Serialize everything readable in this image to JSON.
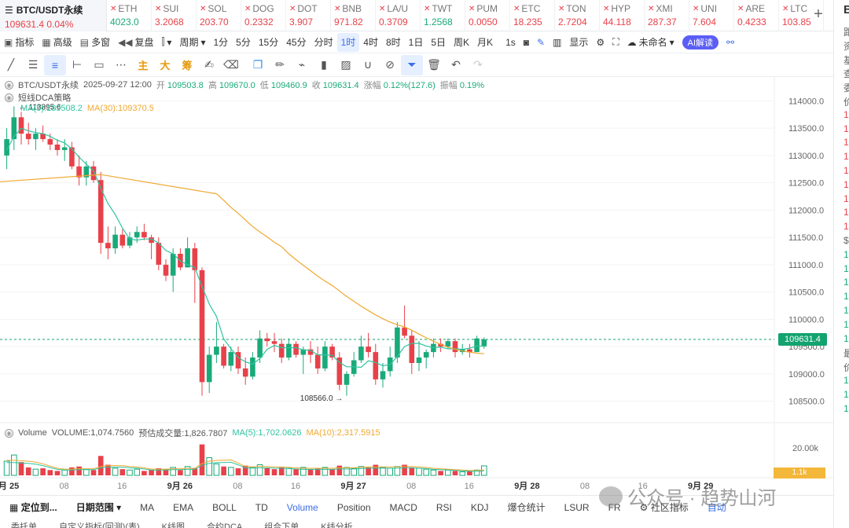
{
  "main_symbol": {
    "name": "BTC/USDT永续",
    "price": "109631.4",
    "change": "0.04%"
  },
  "tickers": [
    {
      "name": "ETH",
      "price": "4023.0",
      "dir": "up"
    },
    {
      "name": "SUI",
      "price": "3.2068",
      "dir": "down"
    },
    {
      "name": "SOL",
      "price": "203.70",
      "dir": "down"
    },
    {
      "name": "DOG",
      "price": "0.2332",
      "dir": "down"
    },
    {
      "name": "DOT",
      "price": "3.907",
      "dir": "down"
    },
    {
      "name": "BNB",
      "price": "971.82",
      "dir": "down"
    },
    {
      "name": "LA/U",
      "price": "0.3709",
      "dir": "down"
    },
    {
      "name": "TWT",
      "price": "1.2568",
      "dir": "up"
    },
    {
      "name": "PUM",
      "price": "0.0050",
      "dir": "down"
    },
    {
      "name": "ETC",
      "price": "18.235",
      "dir": "down"
    },
    {
      "name": "TON",
      "price": "2.7204",
      "dir": "down"
    },
    {
      "name": "HYP",
      "price": "44.118",
      "dir": "down"
    },
    {
      "name": "XMI",
      "price": "287.37",
      "dir": "down"
    },
    {
      "name": "UNI",
      "price": "7.604",
      "dir": "down"
    },
    {
      "name": "ARE",
      "price": "0.4233",
      "dir": "down"
    },
    {
      "name": "LTC",
      "price": "103.85",
      "dir": "down"
    }
  ],
  "toolbar": {
    "indicators": "指标",
    "advanced": "高级",
    "multi": "多窗",
    "replay": "复盘",
    "period": "周期",
    "periods": [
      "1分",
      "5分",
      "15分",
      "45分",
      "分时",
      "1时",
      "4时",
      "8时",
      "1日",
      "5日",
      "周K",
      "月K"
    ],
    "active_period": "1时",
    "seconds": "1s",
    "display": "显示",
    "unnamed": "未命名",
    "ai": "AI解读"
  },
  "draw_tools": [
    "主",
    "大",
    "筹"
  ],
  "chart_info": {
    "symbol": "BTC/USDT永续",
    "datetime": "2025-09-27 12:00",
    "open_label": "开",
    "open": "109503.8",
    "high_label": "高",
    "high": "109670.0",
    "low_label": "低",
    "low": "109460.9",
    "close_label": "收",
    "close": "109631.4",
    "chg_label": "涨幅",
    "chg": "0.12%(127.6)",
    "amp_label": "振幅",
    "amp": "0.19%",
    "strategy": "短线DCA策略",
    "ma5_label": "MA(5):",
    "ma5": "109508.2",
    "ma30_label": "MA(30):",
    "ma30": "109370.5",
    "max_price_label": "113895.6",
    "min_price_label": "108566.0",
    "current_price": "109631.4"
  },
  "volume_info": {
    "label": "Volume",
    "volume_text": "VOLUME:1,074.7560",
    "est_text": "预估成交量:1,826.7807",
    "ma5_text": "MA(5):1,702.0626",
    "ma10_text": "MA(10):2,317.5915",
    "axis_label": "20.00k",
    "tag": "1.1k"
  },
  "colors": {
    "up": "#1aaa7a",
    "down": "#e8414a",
    "ma5": "#2ec4a0",
    "ma30": "#f0a830",
    "accent": "#3b6fe6"
  },
  "chart_data": {
    "type": "candlestick",
    "y_ticks": [
      114000,
      113500,
      113000,
      112500,
      112000,
      111500,
      111000,
      110500,
      110000,
      109500,
      109000,
      108500
    ],
    "y_tick_labels": [
      "114000.0",
      "113500.0",
      "113000.0",
      "112500.0",
      "112000.0",
      "111500.0",
      "111000.0",
      "110500.0",
      "110000.0",
      "109500.0",
      "109000.0",
      "108500.0"
    ],
    "ylim": [
      108250,
      114150
    ],
    "x_labels": [
      "9月 25",
      "08",
      "16",
      "9月 26",
      "08",
      "16",
      "9月 27",
      "08",
      "16",
      "9月 28",
      "08",
      "16",
      "9月 29"
    ],
    "x_label_bars": [
      0,
      8,
      16,
      24,
      32,
      40,
      48,
      56,
      64,
      72,
      80,
      88,
      96
    ],
    "ohlc": [
      [
        113000,
        113500,
        112750,
        113300
      ],
      [
        113300,
        113900,
        113100,
        113700
      ],
      [
        113700,
        113800,
        113200,
        113400
      ],
      [
        113400,
        113600,
        113200,
        113300
      ],
      [
        113300,
        113500,
        113100,
        113400
      ],
      [
        113400,
        113550,
        113250,
        113300
      ],
      [
        113300,
        113400,
        113100,
        113200
      ],
      [
        113200,
        113300,
        113000,
        113100
      ],
      [
        113100,
        113300,
        112900,
        113150
      ],
      [
        113150,
        113250,
        112750,
        112800
      ],
      [
        112800,
        113000,
        112450,
        112600
      ],
      [
        112600,
        112900,
        112450,
        112800
      ],
      [
        112800,
        112900,
        112500,
        112550
      ],
      [
        112550,
        112700,
        111200,
        111400
      ],
      [
        111400,
        111700,
        111100,
        111300
      ],
      [
        111300,
        111700,
        111200,
        111550
      ],
      [
        111550,
        111650,
        111300,
        111350
      ],
      [
        111350,
        111600,
        111300,
        111500
      ],
      [
        111500,
        111700,
        111400,
        111600
      ],
      [
        111600,
        111750,
        111450,
        111500
      ],
      [
        111500,
        111550,
        111100,
        111400
      ],
      [
        111400,
        111500,
        110900,
        111000
      ],
      [
        111000,
        111100,
        110700,
        110800
      ],
      [
        110800,
        111300,
        110500,
        111200
      ],
      [
        111200,
        111300,
        110900,
        110950
      ],
      [
        110950,
        111500,
        110950,
        111300
      ],
      [
        111300,
        111400,
        110300,
        110900
      ],
      [
        110900,
        110950,
        108600,
        108850
      ],
      [
        108850,
        109500,
        108650,
        109350
      ],
      [
        109350,
        109950,
        109200,
        109500
      ],
      [
        109500,
        109550,
        109100,
        109150
      ],
      [
        109150,
        109500,
        109050,
        109400
      ],
      [
        109400,
        109500,
        109000,
        109100
      ],
      [
        109100,
        109300,
        108800,
        108950
      ],
      [
        108950,
        109400,
        108900,
        109300
      ],
      [
        109300,
        109800,
        109200,
        109650
      ],
      [
        109650,
        109750,
        109500,
        109600
      ],
      [
        109600,
        109750,
        109400,
        109550
      ],
      [
        109550,
        109650,
        109200,
        109300
      ],
      [
        109300,
        109650,
        109250,
        109550
      ],
      [
        109550,
        109600,
        109300,
        109350
      ],
      [
        109350,
        109500,
        109000,
        109450
      ],
      [
        109450,
        109600,
        109200,
        109350
      ],
      [
        109350,
        109500,
        109000,
        109100
      ],
      [
        109100,
        109600,
        109050,
        109500
      ],
      [
        109500,
        109550,
        109250,
        109300
      ],
      [
        109300,
        109400,
        108700,
        108800
      ],
      [
        108800,
        109050,
        108600,
        109000
      ],
      [
        109000,
        109400,
        108950,
        109250
      ],
      [
        109250,
        109700,
        109200,
        109500
      ],
      [
        109500,
        109750,
        109300,
        109400
      ],
      [
        109400,
        109550,
        108800,
        108900
      ],
      [
        108900,
        109200,
        108750,
        109050
      ],
      [
        109050,
        109500,
        108950,
        109300
      ],
      [
        109300,
        109950,
        109200,
        109850
      ],
      [
        109850,
        110250,
        109650,
        109700
      ],
      [
        109700,
        109800,
        109000,
        109200
      ],
      [
        109200,
        109600,
        109050,
        109300
      ],
      [
        109300,
        109450,
        109100,
        109400
      ],
      [
        109400,
        109650,
        109300,
        109550
      ],
      [
        109550,
        109650,
        109400,
        109500
      ],
      [
        109500,
        109650,
        109450,
        109600
      ],
      [
        109600,
        109650,
        109300,
        109400
      ],
      [
        109400,
        109550,
        109350,
        109450
      ],
      [
        109450,
        109550,
        109300,
        109400
      ],
      [
        109400,
        109700,
        109400,
        109650
      ],
      [
        109503.8,
        109670,
        109460.9,
        109631.4
      ]
    ],
    "ma5": [
      113100,
      113350,
      113500,
      113450,
      113420,
      113400,
      113350,
      113280,
      113230,
      113120,
      112970,
      112840,
      112720,
      112400,
      112120,
      111920,
      111670,
      111470,
      111450,
      111470,
      111470,
      111400,
      111260,
      111200,
      111070,
      111000,
      110950,
      110600,
      110280,
      110050,
      109640,
      109460,
      109300,
      109220,
      109180,
      109280,
      109450,
      109520,
      109480,
      109480,
      109480,
      109440,
      109430,
      109350,
      109350,
      109340,
      109210,
      109130,
      109130,
      109120,
      109240,
      109210,
      109150,
      109170,
      109320,
      109500,
      109560,
      109560,
      109510,
      109480,
      109490,
      109460,
      109460,
      109450,
      109470,
      109510,
      109508
    ],
    "ma30": [
      null,
      null,
      null,
      null,
      null,
      null,
      null,
      null,
      null,
      null,
      null,
      null,
      null,
      null,
      null,
      null,
      null,
      null,
      null,
      null,
      null,
      null,
      null,
      null,
      null,
      null,
      null,
      null,
      null,
      112300,
      112180,
      112050,
      111940,
      111820,
      111700,
      111600,
      111510,
      111410,
      111330,
      111200,
      111090,
      110990,
      110890,
      110790,
      110700,
      110620,
      110520,
      110420,
      110330,
      110240,
      110160,
      110080,
      110010,
      109950,
      109900,
      109860,
      109800,
      109730,
      109660,
      109600,
      109540,
      109490,
      109450,
      109420,
      109400,
      109380,
      109370
    ],
    "volume": [
      1.6,
      2.3,
      1.5,
      0.9,
      0.7,
      0.8,
      0.6,
      0.5,
      0.6,
      0.9,
      1.0,
      0.7,
      0.6,
      2.2,
      1.2,
      0.8,
      0.7,
      0.6,
      0.7,
      0.5,
      0.6,
      0.8,
      0.7,
      0.9,
      0.6,
      1.0,
      0.8,
      3.5,
      2.0,
      1.3,
      1.0,
      0.9,
      0.8,
      1.1,
      0.9,
      1.2,
      0.8,
      0.7,
      0.9,
      0.8,
      0.7,
      0.9,
      0.7,
      0.8,
      0.9,
      0.7,
      1.1,
      0.9,
      0.8,
      1.0,
      0.9,
      1.2,
      0.9,
      0.8,
      1.0,
      1.2,
      0.9,
      0.8,
      0.7,
      0.6,
      0.5,
      0.6,
      0.5,
      0.4,
      0.5,
      0.6,
      1.07
    ],
    "vol_ma": [
      1.7,
      1.7,
      1.65,
      1.6,
      1.5,
      1.3,
      1.05,
      0.8,
      0.7,
      0.7,
      0.75,
      0.75,
      0.75,
      1.0,
      1.1,
      1.1,
      1.1,
      1.0,
      0.95,
      0.85,
      0.7,
      0.7,
      0.7,
      0.75,
      0.75,
      0.8,
      0.8,
      1.35,
      1.6,
      1.7,
      1.7,
      1.75,
      1.4,
      1.0,
      0.95,
      1.0,
      1.0,
      0.95,
      0.95,
      0.9,
      0.85,
      0.8,
      0.8,
      0.8,
      0.8,
      0.8,
      0.85,
      0.85,
      0.85,
      0.9,
      0.95,
      0.95,
      0.95,
      0.95,
      0.95,
      1.0,
      1.0,
      0.95,
      0.9,
      0.8,
      0.75,
      0.7,
      0.65,
      0.6,
      0.55,
      0.55,
      0.6
    ],
    "vol_ylim": [
      0,
      4.0
    ]
  },
  "bottom_tabs": {
    "locate": "定位到...",
    "range": "日期范围",
    "indicators": [
      "MA",
      "EMA",
      "BOLL",
      "TD",
      "Volume",
      "Position",
      "MACD",
      "RSI",
      "KDJ",
      "爆仓统计",
      "LSUR",
      "FR"
    ],
    "active": "Volume",
    "community": "社区指标",
    "auto": "自动"
  },
  "sub_tabs": [
    "委托单",
    "自定义指标(回测)(表)",
    "K线图",
    "合约DCA",
    "组合下单",
    "K线分析"
  ],
  "right_panel": {
    "top_char": "B",
    "lines": [
      "距",
      "资",
      "基",
      "查",
      "委",
      "价",
      "10",
      "10",
      "10",
      "10",
      "10",
      "10",
      "10",
      "10",
      "1",
      "$",
      "10",
      "10",
      "10",
      "10",
      "10",
      "10",
      "10",
      "最",
      "价",
      "10",
      "10",
      "10"
    ]
  },
  "watermark": "公众号 · 趋势山河"
}
